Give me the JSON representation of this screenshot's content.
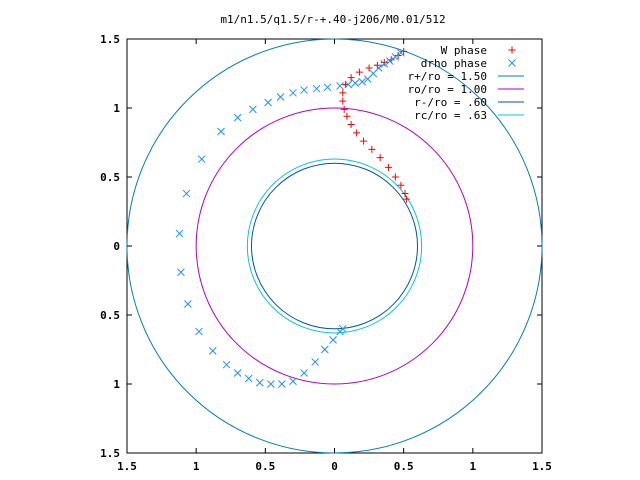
{
  "chart_data": {
    "type": "scatter",
    "title": "m1/n1.5/q1.5/r-+.40-j206/M0.01/512",
    "xlabel": "",
    "ylabel": "",
    "xlim": [
      -1.5,
      1.5
    ],
    "ylim": [
      -1.5,
      1.5
    ],
    "x_ticks": [
      -1.5,
      -1,
      -0.5,
      0,
      0.5,
      1,
      1.5
    ],
    "x_tick_labels": [
      "1.5",
      "1",
      "0.5",
      "0",
      "0.5",
      "1",
      "1.5"
    ],
    "y_ticks": [
      1.5,
      1,
      0.5,
      0,
      -0.5,
      -1,
      -1.5
    ],
    "y_tick_labels": [
      "1.5",
      "1",
      "0.5",
      "0",
      "0.5",
      "1",
      "1.5"
    ],
    "grid": false,
    "legend_position": "top-right",
    "circles": [
      {
        "name": "r+/ro = 1.50",
        "radius": 1.5,
        "color": "#0080b0"
      },
      {
        "name": "ro/ro = 1.00",
        "radius": 1.0,
        "color": "#b000c0"
      },
      {
        "name": "r-/ro = .60",
        "radius": 0.6,
        "color": "#0055aa"
      },
      {
        "name": "rc/ro = .63",
        "radius": 0.63,
        "color": "#00c8d8"
      }
    ],
    "series": [
      {
        "name": "W phase",
        "marker": "+",
        "color": "#ff0000",
        "points": [
          [
            0.5,
            1.41
          ],
          [
            0.46,
            1.38
          ],
          [
            0.41,
            1.35
          ],
          [
            0.36,
            1.33
          ],
          [
            0.31,
            1.31
          ],
          [
            0.25,
            1.29
          ],
          [
            0.18,
            1.26
          ],
          [
            0.12,
            1.22
          ],
          [
            0.08,
            1.17
          ],
          [
            0.06,
            1.11
          ],
          [
            0.06,
            1.05
          ],
          [
            0.07,
            0.99
          ],
          [
            0.09,
            0.94
          ],
          [
            0.12,
            0.88
          ],
          [
            0.16,
            0.82
          ],
          [
            0.21,
            0.76
          ],
          [
            0.27,
            0.7
          ],
          [
            0.33,
            0.64
          ],
          [
            0.39,
            0.57
          ],
          [
            0.44,
            0.5
          ],
          [
            0.48,
            0.44
          ],
          [
            0.51,
            0.38
          ],
          [
            0.52,
            0.34
          ]
        ]
      },
      {
        "name": "drho phase",
        "marker": "x",
        "color": "#1f8fff",
        "points": [
          [
            0.48,
            1.4
          ],
          [
            0.44,
            1.37
          ],
          [
            0.4,
            1.34
          ],
          [
            0.36,
            1.32
          ],
          [
            0.32,
            1.29
          ],
          [
            0.28,
            1.25
          ],
          [
            0.24,
            1.21
          ],
          [
            0.2,
            1.19
          ],
          [
            0.15,
            1.18
          ],
          [
            0.1,
            1.17
          ],
          [
            0.04,
            1.16
          ],
          [
            -0.05,
            1.15
          ],
          [
            -0.13,
            1.14
          ],
          [
            -0.22,
            1.13
          ],
          [
            -0.3,
            1.11
          ],
          [
            -0.39,
            1.08
          ],
          [
            -0.48,
            1.04
          ],
          [
            -0.59,
            0.99
          ],
          [
            -0.7,
            0.93
          ],
          [
            -0.82,
            0.83
          ],
          [
            -0.96,
            0.63
          ],
          [
            -1.07,
            0.38
          ],
          [
            -1.12,
            0.09
          ],
          [
            -1.11,
            -0.19
          ],
          [
            -1.06,
            -0.42
          ],
          [
            -0.98,
            -0.62
          ],
          [
            -0.88,
            -0.76
          ],
          [
            -0.78,
            -0.86
          ],
          [
            -0.7,
            -0.92
          ],
          [
            -0.62,
            -0.96
          ],
          [
            -0.54,
            -0.99
          ],
          [
            -0.46,
            -1.0
          ],
          [
            -0.38,
            -1.0
          ],
          [
            -0.3,
            -0.98
          ],
          [
            -0.22,
            -0.92
          ],
          [
            -0.14,
            -0.84
          ],
          [
            -0.07,
            -0.75
          ],
          [
            -0.01,
            -0.68
          ],
          [
            0.04,
            -0.62
          ],
          [
            0.06,
            -0.6
          ]
        ]
      }
    ]
  }
}
